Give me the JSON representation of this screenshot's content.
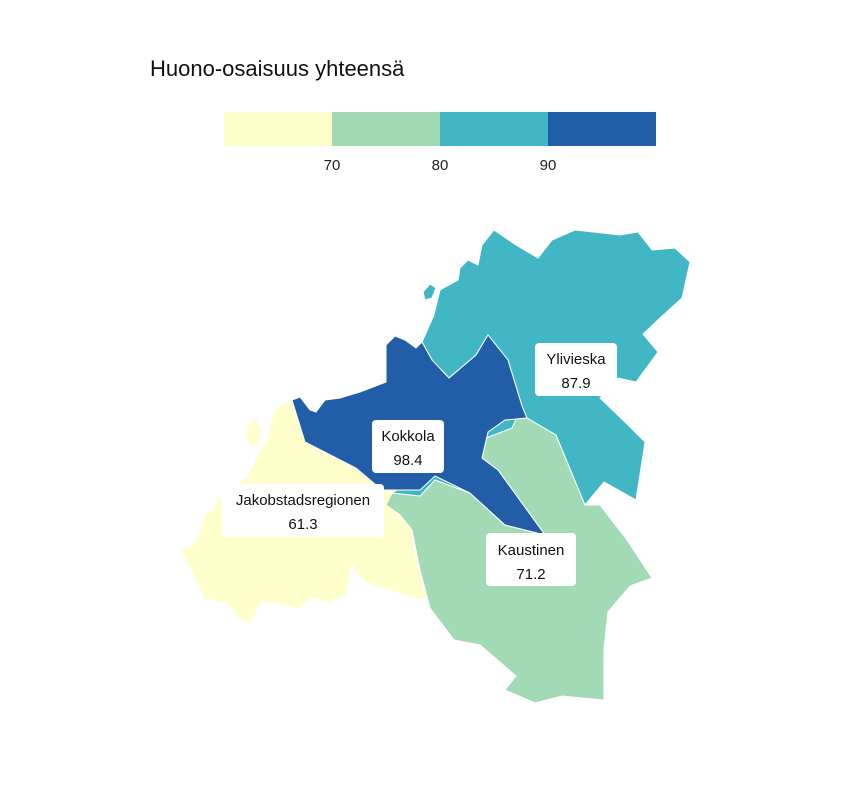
{
  "title": "Huono-osaisuus yhteensä",
  "legend": {
    "breaks": [
      70,
      80,
      90
    ],
    "colors": [
      "#ffffcc",
      "#a1dab4",
      "#41b6c4",
      "#225ea8"
    ]
  },
  "regions": [
    {
      "name": "Jakobstadsregionen",
      "value": 61.3,
      "value_label": "61.3",
      "color": "#ffffcc"
    },
    {
      "name": "Kaustinen",
      "value": 71.2,
      "value_label": "71.2",
      "color": "#a1dab4"
    },
    {
      "name": "Ylivieska",
      "value": 87.9,
      "value_label": "87.9",
      "color": "#41b6c4"
    },
    {
      "name": "Kokkola",
      "value": 98.4,
      "value_label": "98.4",
      "color": "#225ea8"
    }
  ]
}
